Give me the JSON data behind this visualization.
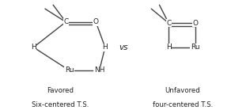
{
  "bg_color": "#ffffff",
  "text_color": "#222222",
  "bond_color": "#444444",
  "label1_line1": "Favored",
  "label1_line2": "Six-centered T.S.",
  "label2_line1": "Unfavored",
  "label2_line2": "four-centered T.S.",
  "vs_text": "vs",
  "font_size": 6.5,
  "label_font_size": 6.2,
  "vs_font_size": 7.5,
  "lw": 1.0
}
